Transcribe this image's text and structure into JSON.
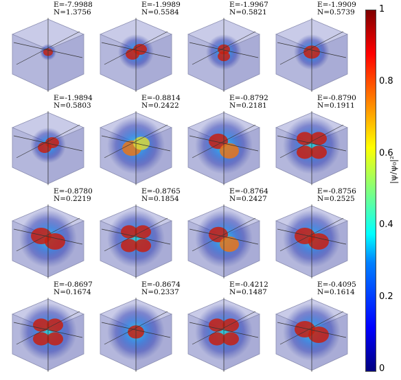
{
  "panels": [
    {
      "energy": "E=-7.9988",
      "norm": "N=1.3756",
      "pattern": "dot"
    },
    {
      "energy": "E=-1.9989",
      "norm": "N=0.5584",
      "pattern": "dumbbell"
    },
    {
      "energy": "E=-1.9967",
      "norm": "N=0.5821",
      "pattern": "vertical"
    },
    {
      "energy": "E=-1.9909",
      "norm": "N=0.5739",
      "pattern": "ring"
    },
    {
      "energy": "E=-1.9894",
      "norm": "N=0.5803",
      "pattern": "dumbbell"
    },
    {
      "energy": "E=-0.8814",
      "norm": "N=0.2422",
      "pattern": "diffuse"
    },
    {
      "energy": "E=-0.8792",
      "norm": "N=0.2181",
      "pattern": "double"
    },
    {
      "energy": "E=-0.8790",
      "norm": "N=0.1911",
      "pattern": "clover"
    },
    {
      "energy": "E=-0.8780",
      "norm": "N=0.2219",
      "pattern": "pair"
    },
    {
      "energy": "E=-0.8765",
      "norm": "N=0.1854",
      "pattern": "clover"
    },
    {
      "energy": "E=-0.8764",
      "norm": "N=0.2427",
      "pattern": "double"
    },
    {
      "energy": "E=-0.8756",
      "norm": "N=0.2525",
      "pattern": "pair"
    },
    {
      "energy": "E=-0.8697",
      "norm": "N=0.1674",
      "pattern": "clover"
    },
    {
      "energy": "E=-0.8674",
      "norm": "N=0.2337",
      "pattern": "ring"
    },
    {
      "energy": "E=-0.4212",
      "norm": "N=0.1487",
      "pattern": "clover"
    },
    {
      "energy": "E=-0.4095",
      "norm": "N=0.1614",
      "pattern": "pair"
    }
  ],
  "colorbar": {
    "ticks": [
      "0",
      "0.2",
      "0.4",
      "0.6",
      "0.8",
      "1"
    ],
    "label": "|ψ/ψ₀|²",
    "colors": [
      "#00007f",
      "#0000ff",
      "#00ffff",
      "#ffff00",
      "#ff0000",
      "#7f0000"
    ]
  }
}
